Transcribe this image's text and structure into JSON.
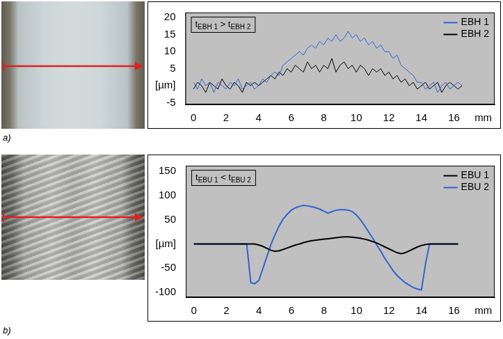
{
  "chart_data": [
    {
      "type": "line",
      "panel_label": "a)",
      "annotation": [
        {
          "text": "t"
        },
        {
          "text": "EBH 1",
          "sub": true
        },
        {
          "text": " > t"
        },
        {
          "text": "EBH 2",
          "sub": true
        }
      ],
      "x": [
        0,
        0.25,
        0.5,
        0.75,
        1,
        1.25,
        1.5,
        1.75,
        2,
        2.25,
        2.5,
        2.75,
        3,
        3.25,
        3.5,
        3.75,
        4,
        4.25,
        4.5,
        4.75,
        5,
        5.25,
        5.5,
        5.75,
        6,
        6.25,
        6.5,
        6.75,
        7,
        7.25,
        7.5,
        7.75,
        8,
        8.25,
        8.5,
        8.75,
        9,
        9.25,
        9.5,
        9.75,
        10,
        10.25,
        10.5,
        10.75,
        11,
        11.25,
        11.5,
        11.75,
        12,
        12.25,
        12.5,
        12.75,
        13,
        13.25,
        13.5,
        13.75,
        14,
        14.25,
        14.5,
        14.75,
        15,
        15.25,
        15.5,
        15.75,
        16,
        16.25,
        16.5
      ],
      "series": [
        {
          "name": "EBH 1",
          "color": "#2f64d2",
          "values": [
            1,
            -1,
            2,
            0,
            1,
            -2,
            1,
            0,
            -1,
            1,
            0,
            2,
            -1,
            0,
            1,
            -1,
            0,
            2,
            1,
            3,
            4,
            3,
            6,
            7,
            8,
            9,
            10,
            9,
            11,
            12,
            11,
            13,
            12,
            14,
            13,
            15,
            13,
            14,
            16,
            14,
            15,
            13,
            14,
            12,
            13,
            11,
            12,
            10,
            10,
            8,
            9,
            6,
            5,
            4,
            3,
            1,
            1,
            -1,
            0,
            1,
            -2,
            0,
            1,
            -1,
            0,
            1,
            0
          ]
        },
        {
          "name": "EBH 2",
          "color": "#000000",
          "values": [
            -1,
            1,
            0,
            -2,
            1,
            0,
            -1,
            2,
            0,
            -1,
            1,
            0,
            -2,
            1,
            0,
            1,
            0,
            1,
            2,
            3,
            2,
            4,
            3,
            5,
            4,
            6,
            5,
            4,
            7,
            5,
            6,
            4,
            6,
            5,
            8,
            4,
            6,
            7,
            5,
            6,
            4,
            6,
            5,
            3,
            5,
            4,
            5,
            3,
            4,
            2,
            3,
            1,
            2,
            0,
            1,
            -1,
            0,
            1,
            -1,
            0,
            1,
            -2,
            0,
            1,
            0,
            -1,
            0
          ]
        }
      ],
      "xlim": [
        -0.5,
        18.5
      ],
      "xticks": [
        0,
        2,
        4,
        6,
        8,
        10,
        12,
        14,
        16,
        {
          "value": 17.8,
          "label": "mm"
        }
      ],
      "ylim": [
        -5.5,
        21.5
      ],
      "yticks": [
        -5,
        {
          "value": 0,
          "label": "[µm]"
        },
        5,
        10,
        15,
        20
      ],
      "grid": false,
      "legend": "upper right"
    },
    {
      "type": "line",
      "panel_label": "b)",
      "annotation": [
        {
          "text": "t"
        },
        {
          "text": "EBU 1",
          "sub": true
        },
        {
          "text": " < t"
        },
        {
          "text": "EBU 2",
          "sub": true
        }
      ],
      "x": [
        0,
        0.25,
        0.5,
        0.75,
        1,
        1.25,
        1.5,
        1.75,
        2,
        2.25,
        2.5,
        2.75,
        3,
        3.25,
        3.5,
        3.75,
        4,
        4.25,
        4.5,
        4.75,
        5,
        5.25,
        5.5,
        5.75,
        6,
        6.25,
        6.5,
        6.75,
        7,
        7.25,
        7.5,
        7.75,
        8,
        8.25,
        8.5,
        8.75,
        9,
        9.25,
        9.5,
        9.75,
        10,
        10.25,
        10.5,
        10.75,
        11,
        11.25,
        11.5,
        11.75,
        12,
        12.25,
        12.5,
        12.75,
        13,
        13.25,
        13.5,
        13.75,
        14,
        14.25,
        14.5,
        14.75,
        15,
        15.25,
        15.5,
        15.75,
        16,
        16.25,
        16.5
      ],
      "series": [
        {
          "name": "EBU 1",
          "color": "#000000",
          "values": [
            0,
            0,
            0,
            0,
            0,
            0,
            0,
            0,
            0,
            0,
            0,
            0,
            0,
            0,
            0,
            0,
            -2,
            -5,
            -9,
            -13,
            -15,
            -14,
            -11,
            -8,
            -5,
            -2,
            0,
            3,
            5,
            7,
            8,
            9,
            10,
            11,
            12,
            13,
            14,
            15,
            15,
            14,
            13,
            12,
            10,
            8,
            5,
            2,
            -2,
            -6,
            -10,
            -14,
            -18,
            -20,
            -18,
            -14,
            -10,
            -6,
            -3,
            -1,
            0,
            0,
            0,
            0,
            0,
            0,
            0,
            0,
            null
          ]
        },
        {
          "name": "EBU 2",
          "color": "#2f64d2",
          "values": [
            0,
            0,
            0,
            0,
            0,
            0,
            0,
            0,
            0,
            0,
            0,
            0,
            0,
            0,
            -80,
            -82,
            -75,
            -50,
            -25,
            0,
            20,
            38,
            52,
            62,
            70,
            75,
            78,
            80,
            79,
            77,
            75,
            72,
            68,
            64,
            67,
            70,
            71,
            71,
            70,
            67,
            60,
            50,
            38,
            25,
            12,
            -2,
            -15,
            -30,
            -42,
            -55,
            -65,
            -73,
            -80,
            -85,
            -90,
            -93,
            -95,
            -40,
            0,
            0,
            0,
            0,
            0,
            0,
            0,
            0,
            null
          ]
        }
      ],
      "xlim": [
        -0.5,
        18.5
      ],
      "xticks": [
        0,
        2,
        4,
        6,
        8,
        10,
        12,
        14,
        16,
        {
          "value": 17.8,
          "label": "mm"
        }
      ],
      "ylim": [
        -110,
        162
      ],
      "yticks": [
        -100,
        -50,
        {
          "value": 0,
          "label": "[µm]"
        },
        50,
        100,
        150
      ],
      "grid": false,
      "legend": "upper right"
    }
  ]
}
